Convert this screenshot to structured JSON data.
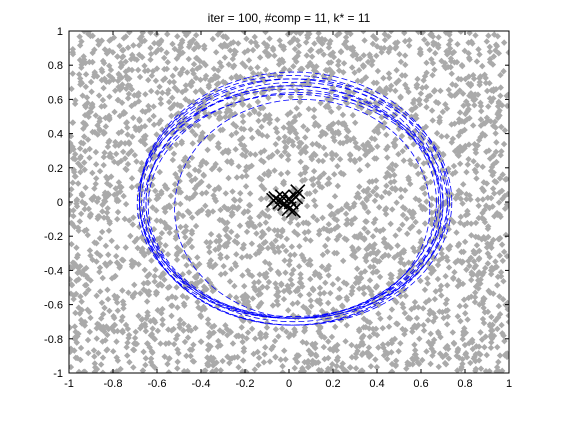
{
  "chart_data": {
    "type": "scatter",
    "title": "iter = 100, #comp = 11, k* = 11",
    "xlabel": "",
    "ylabel": "",
    "xlim": [
      -1,
      1
    ],
    "ylim": [
      -1,
      1
    ],
    "x_ticks": [
      -1,
      -0.8,
      -0.6,
      -0.4,
      -0.2,
      0,
      0.2,
      0.4,
      0.6,
      0.8,
      1
    ],
    "y_ticks": [
      -1,
      -0.8,
      -0.6,
      -0.4,
      -0.2,
      0,
      0.2,
      0.4,
      0.6,
      0.8,
      1
    ],
    "x_tick_labels": [
      "-1",
      "-0.8",
      "-0.6",
      "-0.4",
      "-0.2",
      "0",
      "0.2",
      "0.4",
      "0.6",
      "0.8",
      "1"
    ],
    "y_tick_labels": [
      "-1",
      "-0.8",
      "-0.6",
      "-0.4",
      "-0.2",
      "0",
      "0.2",
      "0.4",
      "0.6",
      "0.8",
      "1"
    ],
    "grid": false,
    "legend": "none",
    "colors": {
      "points": "#aaaaaa",
      "ellipses": "#0000ff",
      "means": "#000000",
      "axes": "#000000"
    },
    "series": [
      {
        "kind": "uniform-random-points",
        "marker": "diamond",
        "x_range": [
          -1,
          1
        ],
        "y_range": [
          -1,
          1
        ]
      },
      {
        "kind": "component-ellipses",
        "line_style": "dashed",
        "ellipses": [
          {
            "cx": 0.02,
            "cy": 0.02,
            "rx": 0.7,
            "ry": 0.74
          },
          {
            "cx": 0.01,
            "cy": 0.01,
            "rx": 0.69,
            "ry": 0.73
          },
          {
            "cx": 0.03,
            "cy": 0.0,
            "rx": 0.71,
            "ry": 0.72
          },
          {
            "cx": 0.0,
            "cy": 0.02,
            "rx": 0.68,
            "ry": 0.7
          },
          {
            "cx": 0.02,
            "cy": -0.01,
            "rx": 0.67,
            "ry": 0.69
          },
          {
            "cx": 0.01,
            "cy": 0.0,
            "rx": 0.66,
            "ry": 0.68
          },
          {
            "cx": 0.03,
            "cy": 0.01,
            "rx": 0.7,
            "ry": 0.69
          },
          {
            "cx": 0.04,
            "cy": -0.02,
            "rx": 0.68,
            "ry": 0.66
          },
          {
            "cx": 0.0,
            "cy": -0.01,
            "rx": 0.69,
            "ry": 0.67
          },
          {
            "cx": 0.02,
            "cy": -0.02,
            "rx": 0.68,
            "ry": 0.65
          },
          {
            "cx": 0.06,
            "cy": -0.04,
            "rx": 0.58,
            "ry": 0.64
          }
        ]
      },
      {
        "kind": "component-means",
        "marker": "x",
        "points": [
          {
            "x": -0.06,
            "y": 0.02
          },
          {
            "x": -0.03,
            "y": 0.03
          },
          {
            "x": 0.0,
            "y": 0.02
          },
          {
            "x": 0.04,
            "y": 0.06
          },
          {
            "x": 0.02,
            "y": -0.05
          },
          {
            "x": -0.07,
            "y": 0.01
          },
          {
            "x": 0.01,
            "y": 0.0
          },
          {
            "x": -0.02,
            "y": -0.01
          },
          {
            "x": 0.03,
            "y": 0.03
          },
          {
            "x": -0.04,
            "y": 0.0
          },
          {
            "x": 0.0,
            "y": -0.04
          }
        ]
      }
    ]
  }
}
